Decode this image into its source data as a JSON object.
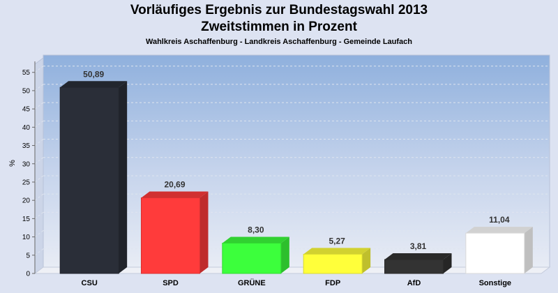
{
  "chart_data": {
    "type": "bar",
    "title": "Vorläufiges Ergebnis zur Bundestagswahl 2013",
    "subtitle": "Zweitstimmen in Prozent",
    "caption": "Wahlkreis Aschaffenburg - Landkreis Aschaffenburg - Gemeinde Laufach",
    "xlabel": "",
    "ylabel": "%",
    "ylim": [
      0,
      58
    ],
    "yticks": [
      "0",
      "5",
      "10",
      "15",
      "20",
      "25",
      "30",
      "35",
      "40",
      "45",
      "50",
      "55"
    ],
    "categories": [
      "CSU",
      "SPD",
      "GRÜNE",
      "FDP",
      "AfD",
      "Sonstige"
    ],
    "values": [
      50.89,
      20.69,
      8.3,
      5.27,
      3.81,
      11.04
    ],
    "value_labels": [
      "50,89",
      "20,69",
      "8,30",
      "5,27",
      "3,81",
      "11,04"
    ],
    "colors": [
      "#2a2e38",
      "#ff3b3b",
      "#3cff3c",
      "#ffff3a",
      "#333333",
      "#ffffff"
    ]
  }
}
